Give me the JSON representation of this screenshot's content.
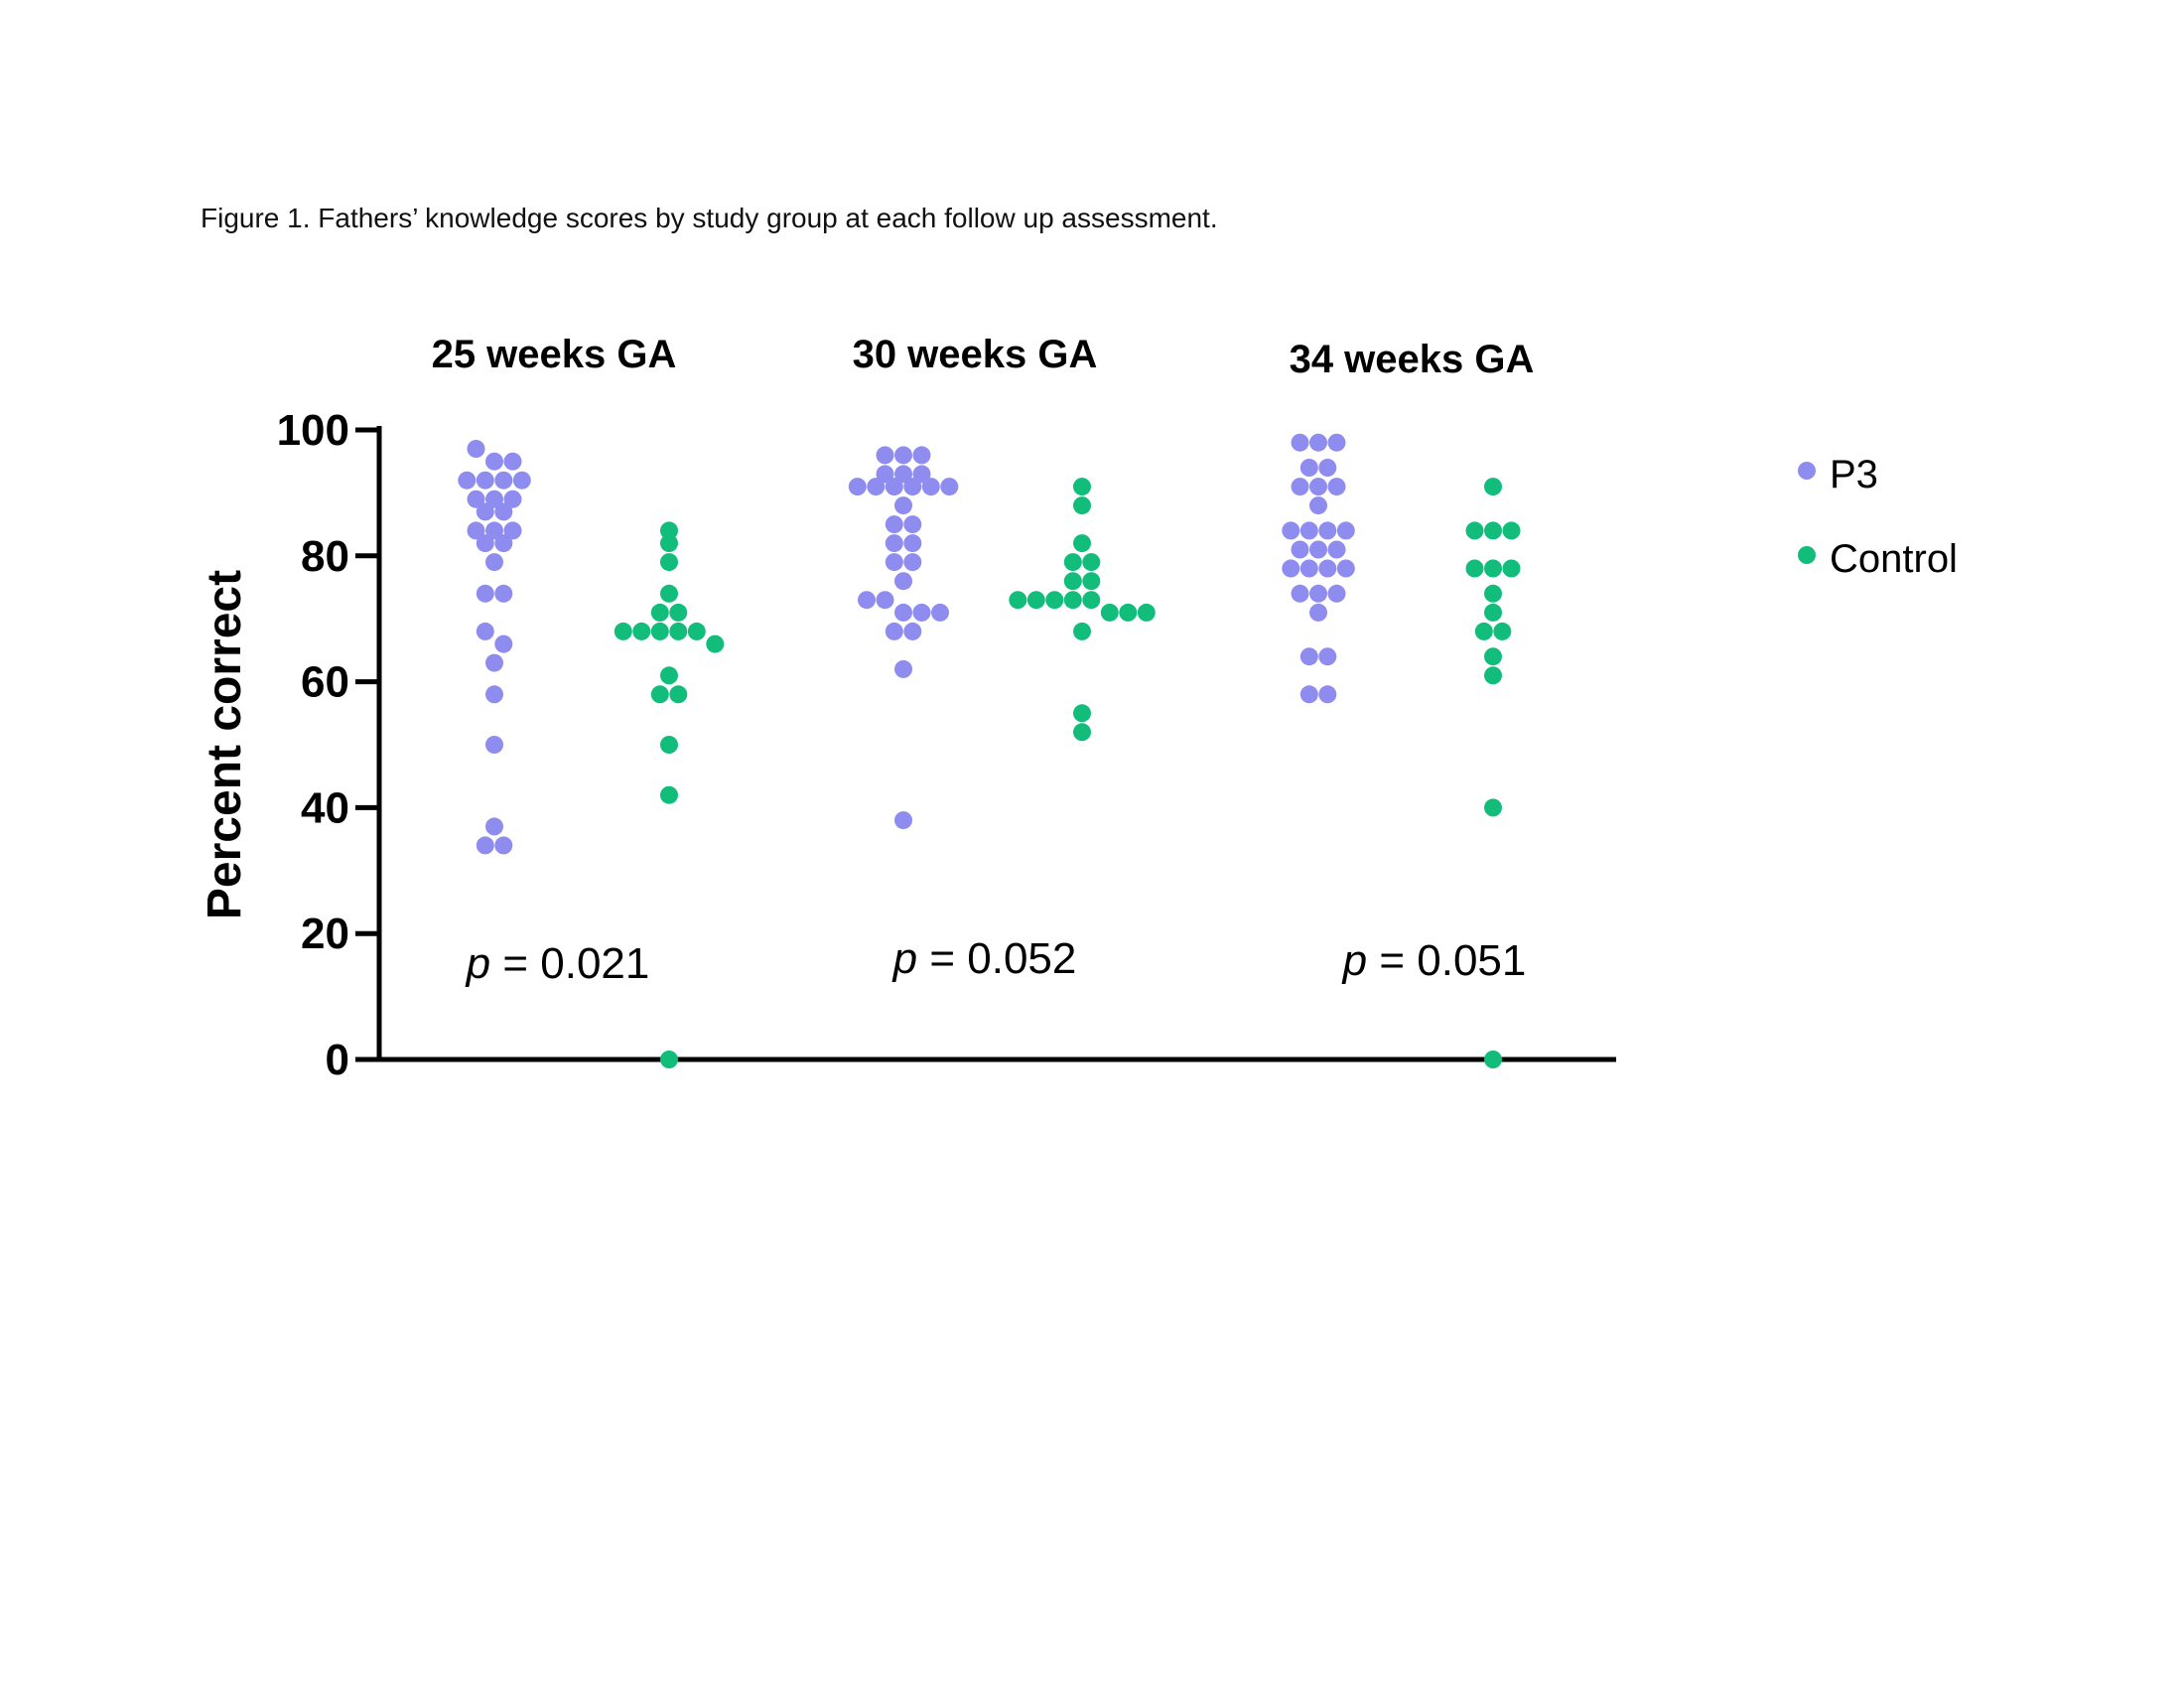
{
  "caption": "Figure 1. Fathers’ knowledge scores by study group at each follow up assessment.",
  "chart_data": {
    "type": "scatter",
    "subtype": "grouped dot plot",
    "ylabel": "Percent correct",
    "ylim": [
      0,
      100
    ],
    "yticks": [
      "0",
      "20",
      "40",
      "60",
      "80",
      "100"
    ],
    "legend": {
      "placement": "right",
      "entries": [
        {
          "name": "P3",
          "color": "#8f8cf0"
        },
        {
          "name": "Control",
          "color": "#12bd7c"
        }
      ]
    },
    "panels": [
      {
        "title": "25 weeks GA",
        "p_prefix": "p",
        "p_value": " = 0.021",
        "series": [
          {
            "name": "P3",
            "values": [
              97,
              95,
              95,
              92,
              92,
              92,
              92,
              89,
              89,
              89,
              87,
              87,
              84,
              84,
              84,
              82,
              82,
              79,
              74,
              74,
              68,
              66,
              63,
              58,
              50,
              37,
              34,
              34
            ]
          },
          {
            "name": "Control",
            "values": [
              84,
              82,
              79,
              74,
              71,
              71,
              68,
              68,
              68,
              68,
              68,
              66,
              61,
              58,
              58,
              50,
              42,
              0
            ]
          }
        ]
      },
      {
        "title": "30 weeks GA",
        "p_prefix": "p",
        "p_value": " = 0.052",
        "series": [
          {
            "name": "P3",
            "values": [
              96,
              96,
              96,
              93,
              93,
              93,
              91,
              91,
              91,
              91,
              91,
              91,
              88,
              85,
              85,
              82,
              82,
              79,
              79,
              76,
              73,
              73,
              71,
              71,
              71,
              68,
              68,
              62,
              38
            ]
          },
          {
            "name": "Control",
            "values": [
              91,
              88,
              82,
              79,
              79,
              76,
              76,
              73,
              73,
              73,
              73,
              73,
              71,
              71,
              71,
              68,
              55,
              52
            ]
          }
        ]
      },
      {
        "title": "34 weeks GA",
        "p_prefix": "p",
        "p_value": " = 0.051",
        "series": [
          {
            "name": "P3",
            "values": [
              98,
              98,
              98,
              94,
              94,
              91,
              91,
              91,
              88,
              84,
              84,
              84,
              84,
              81,
              81,
              81,
              78,
              78,
              78,
              78,
              74,
              74,
              74,
              71,
              64,
              64,
              58,
              58
            ]
          },
          {
            "name": "Control",
            "values": [
              91,
              84,
              84,
              84,
              78,
              78,
              78,
              74,
              71,
              68,
              68,
              64,
              61,
              40,
              0
            ]
          }
        ]
      }
    ]
  }
}
